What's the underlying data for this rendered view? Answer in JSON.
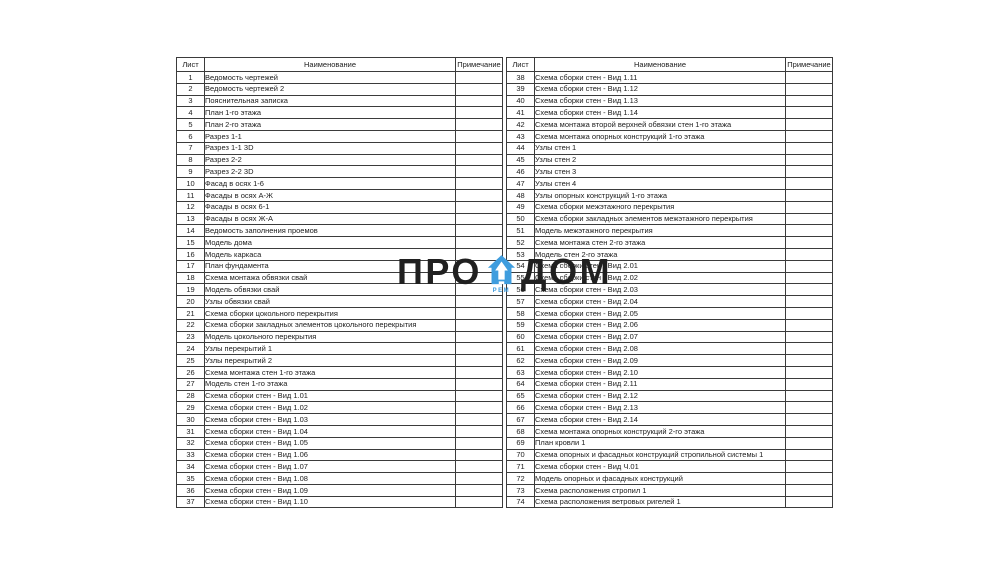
{
  "watermark": {
    "left_text": "ПРО",
    "right_text": "ДОМ",
    "sub_text": "РЕМ",
    "icon": "house-arrow-up-icon",
    "icon_color": "#3f9dde",
    "text_color": "#202020"
  },
  "tables": [
    {
      "name": "sheet-list-left",
      "headers": [
        "Лист",
        "Наименование",
        "Примечание"
      ],
      "rows": [
        [
          "1",
          "Ведомость чертежей",
          ""
        ],
        [
          "2",
          "Ведомость чертежей 2",
          ""
        ],
        [
          "3",
          "Пояснительная записка",
          ""
        ],
        [
          "4",
          "План 1-го этажа",
          ""
        ],
        [
          "5",
          "План 2-го этажа",
          ""
        ],
        [
          "6",
          "Разрез 1-1",
          ""
        ],
        [
          "7",
          "Разрез 1-1 3D",
          ""
        ],
        [
          "8",
          "Разрез 2-2",
          ""
        ],
        [
          "9",
          "Разрез 2-2 3D",
          ""
        ],
        [
          "10",
          "Фасад в осях 1-6",
          ""
        ],
        [
          "11",
          "Фасады в осях А-Ж",
          ""
        ],
        [
          "12",
          "Фасады в осях 6-1",
          ""
        ],
        [
          "13",
          "Фасады в осях Ж-А",
          ""
        ],
        [
          "14",
          "Ведомость заполнения проемов",
          ""
        ],
        [
          "15",
          "Модель дома",
          ""
        ],
        [
          "16",
          "Модель каркаса",
          ""
        ],
        [
          "17",
          "План фундамента",
          ""
        ],
        [
          "18",
          "Схема монтажа обвязки свай",
          ""
        ],
        [
          "19",
          "Модель обвязки свай",
          ""
        ],
        [
          "20",
          "Узлы обвязки свай",
          ""
        ],
        [
          "21",
          "Схема сборки цокольного перекрытия",
          ""
        ],
        [
          "22",
          "Схема сборки закладных элементов цокольного перекрытия",
          ""
        ],
        [
          "23",
          "Модель цокольного перекрытия",
          ""
        ],
        [
          "24",
          "Узлы перекрытий 1",
          ""
        ],
        [
          "25",
          "Узлы  перекрытий 2",
          ""
        ],
        [
          "26",
          "Схема монтажа стен 1-го этажа",
          ""
        ],
        [
          "27",
          "Модель стен 1-го этажа",
          ""
        ],
        [
          "28",
          "Схема сборки стен - Вид 1.01",
          ""
        ],
        [
          "29",
          "Схема сборки стен - Вид 1.02",
          ""
        ],
        [
          "30",
          "Схема сборки стен - Вид 1.03",
          ""
        ],
        [
          "31",
          "Схема сборки стен - Вид 1.04",
          ""
        ],
        [
          "32",
          "Схема сборки стен - Вид 1.05",
          ""
        ],
        [
          "33",
          "Схема сборки стен - Вид 1.06",
          ""
        ],
        [
          "34",
          "Схема сборки стен - Вид 1.07",
          ""
        ],
        [
          "35",
          "Схема сборки стен - Вид 1.08",
          ""
        ],
        [
          "36",
          "Схема сборки стен - Вид 1.09",
          ""
        ],
        [
          "37",
          "Схема сборки стен - Вид 1.10",
          ""
        ]
      ]
    },
    {
      "name": "sheet-list-right",
      "headers": [
        "Лист",
        "Наименование",
        "Примечание"
      ],
      "rows": [
        [
          "38",
          "Схема сборки стен - Вид 1.11",
          ""
        ],
        [
          "39",
          "Схема сборки стен - Вид 1.12",
          ""
        ],
        [
          "40",
          "Схема сборки стен - Вид 1.13",
          ""
        ],
        [
          "41",
          "Схема сборки стен - Вид 1.14",
          ""
        ],
        [
          "42",
          "Схема монтажа второй верхней обвязки стен 1-го этажа",
          ""
        ],
        [
          "43",
          "Схема монтажа опорных конструкций 1-го этажа",
          ""
        ],
        [
          "44",
          "Узлы стен 1",
          ""
        ],
        [
          "45",
          "Узлы стен 2",
          ""
        ],
        [
          "46",
          "Узлы стен 3",
          ""
        ],
        [
          "47",
          "Узлы стен 4",
          ""
        ],
        [
          "48",
          "Узлы опорных конструкций 1-го этажа",
          ""
        ],
        [
          "49",
          "Схема сборки межэтажного перекрытия",
          ""
        ],
        [
          "50",
          "Схема сборки закладных элементов межэтажного перекрытия",
          ""
        ],
        [
          "51",
          "Модель межэтажного перекрытия",
          ""
        ],
        [
          "52",
          "Схема монтажа стен 2-го этажа",
          ""
        ],
        [
          "53",
          "Модель стен 2-го этажа",
          ""
        ],
        [
          "54",
          "Схема сборки стен - Вид 2.01",
          ""
        ],
        [
          "55",
          "Схема сборки стен - Вид 2.02",
          ""
        ],
        [
          "56",
          "Схема сборки стен - Вид 2.03",
          ""
        ],
        [
          "57",
          "Схема сборки стен - Вид 2.04",
          ""
        ],
        [
          "58",
          "Схема сборки стен - Вид 2.05",
          ""
        ],
        [
          "59",
          "Схема сборки стен - Вид 2.06",
          ""
        ],
        [
          "60",
          "Схема сборки стен - Вид 2.07",
          ""
        ],
        [
          "61",
          "Схема сборки стен - Вид 2.08",
          ""
        ],
        [
          "62",
          "Схема сборки стен - Вид 2.09",
          ""
        ],
        [
          "63",
          "Схема сборки стен - Вид 2.10",
          ""
        ],
        [
          "64",
          "Схема сборки стен - Вид 2.11",
          ""
        ],
        [
          "65",
          "Схема сборки стен - Вид 2.12",
          ""
        ],
        [
          "66",
          "Схема сборки стен - Вид 2.13",
          ""
        ],
        [
          "67",
          "Схема сборки стен - Вид 2.14",
          ""
        ],
        [
          "68",
          "Схема монтажа опорных конструкций 2-го этажа",
          ""
        ],
        [
          "69",
          "План кровли 1",
          ""
        ],
        [
          "70",
          "Схема опорных и фасадных конструкций стропильной системы 1",
          ""
        ],
        [
          "71",
          "Схема сборки стен - Вид Ч.01",
          ""
        ],
        [
          "72",
          "Модель опорных и фасадных конструкций",
          ""
        ],
        [
          "73",
          "Схема расположения стропил 1",
          ""
        ],
        [
          "74",
          "Схема расположения ветровых ригелей 1",
          ""
        ]
      ]
    }
  ]
}
